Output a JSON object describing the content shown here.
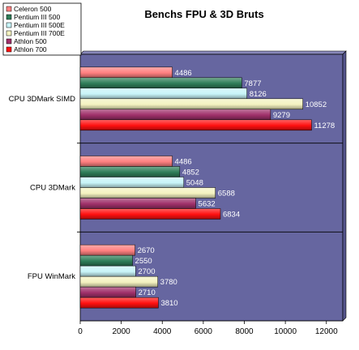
{
  "chart_data": {
    "type": "bar",
    "orientation": "horizontal",
    "title": "Benchs FPU & 3D Bruts",
    "xlabel": "",
    "ylabel": "",
    "categories": [
      "CPU 3DMark SIMD",
      "CPU 3DMark",
      "FPU WinMark"
    ],
    "series": [
      {
        "name": "Celeron 500",
        "color": "#ff8080",
        "values": [
          4486,
          4486,
          2670
        ]
      },
      {
        "name": "Pentium III 500",
        "color": "#2e7d58",
        "values": [
          7877,
          4852,
          2550
        ]
      },
      {
        "name": "Pentium III 500E",
        "color": "#c8f4f8",
        "values": [
          8126,
          5048,
          2700
        ]
      },
      {
        "name": "Pentium III 700E",
        "color": "#f4f2c0",
        "values": [
          10852,
          6588,
          3780
        ]
      },
      {
        "name": "Athlon 500",
        "color": "#a0306a",
        "values": [
          9279,
          5632,
          2710
        ]
      },
      {
        "name": "Athlon 700",
        "color": "#ff1010",
        "values": [
          11278,
          6834,
          3810
        ]
      }
    ],
    "xlim": [
      0,
      12800
    ],
    "xticks": [
      0,
      2000,
      4000,
      6000,
      8000,
      10000,
      12000
    ],
    "plot_background": "#6666a0",
    "grid": false,
    "legend_position": "top-left"
  }
}
